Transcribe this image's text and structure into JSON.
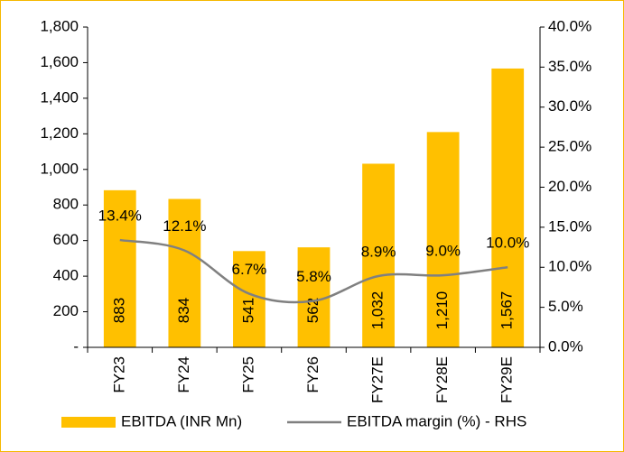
{
  "chart_data": {
    "type": "bar",
    "categories": [
      "FY23",
      "FY24",
      "FY25",
      "FY26",
      "FY27E",
      "FY28E",
      "FY29E"
    ],
    "series": [
      {
        "name": "EBITDA (INR Mn)",
        "color": "#ffc000",
        "values": [
          883,
          834,
          541,
          562,
          1032,
          1210,
          1567
        ],
        "value_labels": [
          "883",
          "834",
          "541",
          "562",
          "1,032",
          "1,210",
          "1,567"
        ]
      },
      {
        "name": "EBITDA margin (%) - RHS",
        "color": "#808080",
        "type": "line",
        "axis": "y2",
        "values": [
          13.4,
          12.1,
          6.7,
          5.8,
          8.9,
          9.0,
          10.0
        ],
        "value_labels": [
          "13.4%",
          "12.1%",
          "6.7%",
          "5.8%",
          "8.9%",
          "9.0%",
          "10.0%"
        ]
      }
    ],
    "ylim": [
      0,
      1800
    ],
    "yticks": [
      {
        "value": 0,
        "label": "-"
      },
      200,
      400,
      600,
      800,
      {
        "value": 1000,
        "label": "1,000"
      },
      {
        "value": 1200,
        "label": "1,200"
      },
      {
        "value": 1400,
        "label": "1,400"
      },
      {
        "value": 1600,
        "label": "1,600"
      },
      {
        "value": 1800,
        "label": "1,800"
      }
    ],
    "y2lim": [
      0,
      40
    ],
    "y2ticks": [
      {
        "value": 0,
        "label": "0.0%"
      },
      {
        "value": 5,
        "label": "5.0%"
      },
      {
        "value": 10,
        "label": "10.0%"
      },
      {
        "value": 15,
        "label": "15.0%"
      },
      {
        "value": 20,
        "label": "20.0%"
      },
      {
        "value": 25,
        "label": "25.0%"
      },
      {
        "value": 30,
        "label": "30.0%"
      },
      {
        "value": 35,
        "label": "35.0%"
      },
      {
        "value": 40,
        "label": "40.0%"
      }
    ],
    "legend": "bottom"
  }
}
